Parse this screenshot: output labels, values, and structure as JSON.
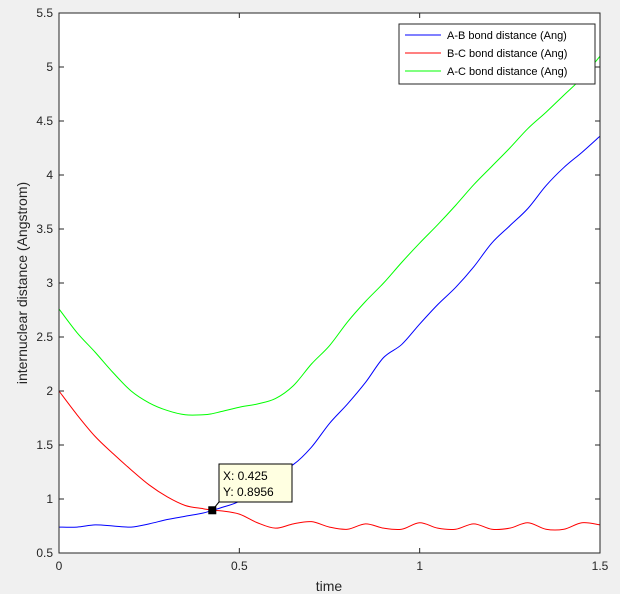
{
  "chart_data": {
    "type": "line",
    "xlabel": "time",
    "ylabel": "internuclear distance (Angstrom)",
    "xlim": [
      0,
      1.5
    ],
    "ylim": [
      0.5,
      5.5
    ],
    "xticks": [
      0,
      0.5,
      1,
      1.5
    ],
    "xtick_labels": [
      "0",
      "0.5",
      "1",
      "1.5"
    ],
    "yticks": [
      0.5,
      1,
      1.5,
      2,
      2.5,
      3,
      3.5,
      4,
      4.5,
      5,
      5.5
    ],
    "ytick_labels": [
      "0.5",
      "1",
      "1.5",
      "2",
      "2.5",
      "3",
      "3.5",
      "4",
      "4.5",
      "5",
      "5.5"
    ],
    "grid": false,
    "legend_position": "top-right",
    "x": [
      0,
      0.05,
      0.1,
      0.15,
      0.2,
      0.25,
      0.3,
      0.35,
      0.4,
      0.425,
      0.45,
      0.5,
      0.55,
      0.6,
      0.65,
      0.7,
      0.75,
      0.8,
      0.85,
      0.9,
      0.95,
      1.0,
      1.05,
      1.1,
      1.15,
      1.2,
      1.25,
      1.3,
      1.35,
      1.4,
      1.45,
      1.5
    ],
    "series": [
      {
        "name": "A-B bond distance (Ang)",
        "color": "#0000ff",
        "values": [
          0.74,
          0.74,
          0.76,
          0.75,
          0.74,
          0.77,
          0.81,
          0.84,
          0.87,
          0.8956,
          0.92,
          0.98,
          1.11,
          1.24,
          1.32,
          1.48,
          1.7,
          1.88,
          2.08,
          2.31,
          2.43,
          2.62,
          2.8,
          2.96,
          3.15,
          3.37,
          3.53,
          3.69,
          3.9,
          4.07,
          4.21,
          4.36
        ]
      },
      {
        "name": "B-C bond distance (Ang)",
        "color": "#ff0000",
        "values": [
          2.0,
          1.78,
          1.58,
          1.42,
          1.27,
          1.13,
          1.02,
          0.94,
          0.91,
          0.8956,
          0.89,
          0.86,
          0.78,
          0.73,
          0.77,
          0.79,
          0.74,
          0.72,
          0.77,
          0.73,
          0.72,
          0.78,
          0.73,
          0.72,
          0.77,
          0.72,
          0.73,
          0.78,
          0.72,
          0.72,
          0.78,
          0.76
        ]
      },
      {
        "name": "A-C bond distance (Ang)",
        "color": "#00ff00",
        "values": [
          2.76,
          2.54,
          2.36,
          2.17,
          2.0,
          1.89,
          1.82,
          1.78,
          1.78,
          1.79,
          1.81,
          1.85,
          1.88,
          1.93,
          2.05,
          2.25,
          2.42,
          2.64,
          2.83,
          3.0,
          3.19,
          3.37,
          3.54,
          3.72,
          3.91,
          4.08,
          4.25,
          4.43,
          4.58,
          4.74,
          4.9,
          5.1
        ]
      }
    ],
    "datatip": {
      "x": 0.425,
      "y": 0.8956,
      "line_x": "X: 0.425",
      "line_y": "Y: 0.8956"
    }
  }
}
